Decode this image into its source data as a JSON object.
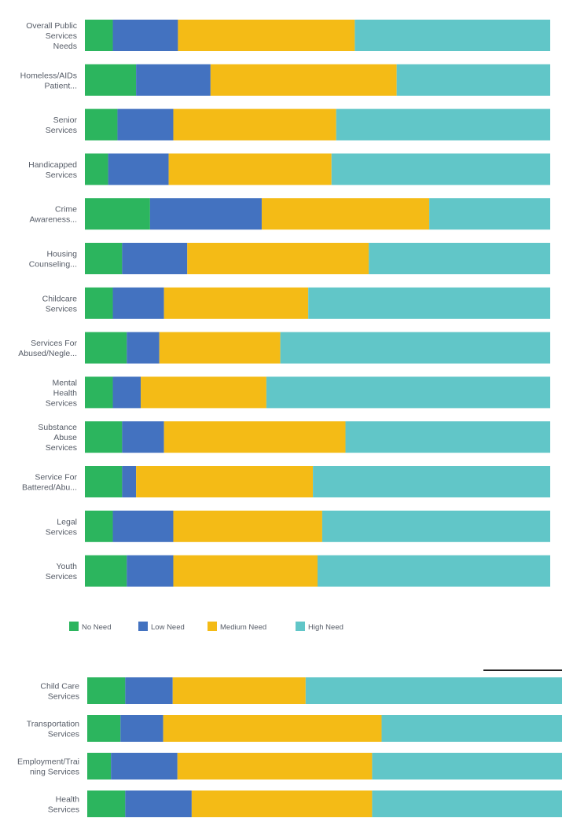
{
  "chart_data": [
    {
      "type": "bar",
      "orientation": "horizontal",
      "stacked": "100%",
      "title": "",
      "xlabel": "",
      "ylabel": "",
      "xlim": [
        0,
        100
      ],
      "grid": false,
      "legend_position": "bottom-left",
      "categories": [
        [
          "Overall Public",
          "Services",
          "Needs"
        ],
        [
          "Homeless/AIDs",
          "Patient..."
        ],
        [
          "Senior",
          "Services"
        ],
        [
          "Handicapped",
          "Services"
        ],
        [
          "Crime",
          "Awareness..."
        ],
        [
          "Housing",
          "Counseling..."
        ],
        [
          "Childcare",
          "Services"
        ],
        [
          "Services For",
          "Abused/Negle..."
        ],
        [
          "Mental",
          "Health",
          "Services"
        ],
        [
          "Substance",
          "Abuse",
          "Services"
        ],
        [
          "Service For",
          "Battered/Abu..."
        ],
        [
          "Legal",
          "Services"
        ],
        [
          "Youth",
          "Services"
        ]
      ],
      "series": [
        {
          "name": "No Need",
          "color": "#2cb55e",
          "values": [
            6,
            11,
            7,
            5,
            14,
            8,
            6,
            9,
            6,
            8,
            8,
            6,
            9
          ]
        },
        {
          "name": "Low Need",
          "color": "#4372c0",
          "values": [
            14,
            16,
            12,
            13,
            24,
            14,
            11,
            7,
            6,
            9,
            3,
            13,
            10
          ]
        },
        {
          "name": "Medium Need",
          "color": "#f4bb16",
          "values": [
            38,
            40,
            35,
            35,
            36,
            39,
            31,
            26,
            27,
            39,
            38,
            32,
            31
          ]
        },
        {
          "name": "High Need",
          "color": "#61c6c8",
          "values": [
            42,
            33,
            46,
            47,
            26,
            39,
            52,
            58,
            61,
            44,
            51,
            49,
            50
          ]
        }
      ]
    },
    {
      "type": "bar",
      "orientation": "horizontal",
      "stacked": "100%",
      "title": "",
      "xlabel": "",
      "ylabel": "",
      "xlim": [
        0,
        100
      ],
      "grid": false,
      "categories": [
        [
          "Child Care",
          "Services"
        ],
        [
          "Transportation",
          "Services"
        ],
        [
          "Employment/Trai",
          "ning Services"
        ],
        [
          "Health",
          "Services"
        ]
      ],
      "series": [
        {
          "name": "No Need",
          "color": "#2cb55e",
          "values": [
            8,
            7,
            5,
            8
          ]
        },
        {
          "name": "Low Need",
          "color": "#4372c0",
          "values": [
            10,
            9,
            14,
            14
          ]
        },
        {
          "name": "Medium Need",
          "color": "#f4bb16",
          "values": [
            28,
            46,
            41,
            38
          ]
        },
        {
          "name": "High Need",
          "color": "#61c6c8",
          "values": [
            54,
            38,
            40,
            40
          ]
        }
      ]
    }
  ]
}
